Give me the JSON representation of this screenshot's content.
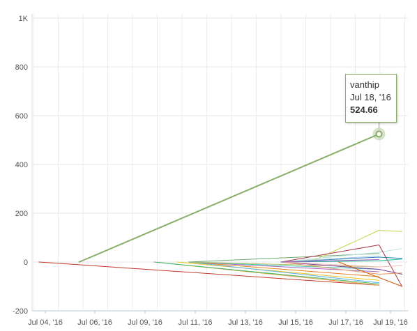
{
  "chart_data": {
    "type": "line",
    "title": "",
    "xlabel": "",
    "ylabel": "",
    "ylim": [
      -200,
      1000
    ],
    "y_ticks": [
      "-200",
      "0",
      "200",
      "400",
      "600",
      "800",
      "1K"
    ],
    "y_tick_values": [
      -200,
      0,
      200,
      400,
      600,
      800,
      1000
    ],
    "x_ticks": [
      "Jul 04, '16",
      "Jul 06, '16",
      "Jul 09, '16",
      "Jul 11, '16",
      "Jul 13, '16",
      "Jul 15, '16",
      "Jul 17, '16",
      "Jul 19, '16"
    ],
    "grid": true,
    "legend": "none",
    "highlight_color": "#8aae6a",
    "series": [
      {
        "name": "vanthip",
        "color": "#8aae6a",
        "width": 2,
        "points": [
          [
            "2016-07-05T12:00",
            0
          ],
          [
            "2016-07-18T12:00",
            524.66
          ]
        ]
      },
      {
        "color": "#c0392b",
        "width": 1,
        "points": [
          [
            "2016-07-03T18:00",
            0
          ],
          [
            "2016-07-18T12:00",
            -95
          ]
        ]
      },
      {
        "color": "#e0a030",
        "width": 1,
        "points": [
          [
            "2016-07-08T18:00",
            0
          ],
          [
            "2016-07-18T12:00",
            -95
          ]
        ]
      },
      {
        "color": "#3cb878",
        "width": 1,
        "points": [
          [
            "2016-07-08T18:00",
            0
          ],
          [
            "2016-07-18T12:00",
            -90
          ]
        ]
      },
      {
        "color": "#f0c419",
        "width": 1,
        "points": [
          [
            "2016-07-09T18:00",
            0
          ],
          [
            "2016-07-18T12:00",
            -75
          ]
        ]
      },
      {
        "color": "#e67e22",
        "width": 1,
        "points": [
          [
            "2016-07-10T06:00",
            0
          ],
          [
            "2016-07-18T12:00",
            -60
          ]
        ]
      },
      {
        "color": "#5dade2",
        "width": 1,
        "points": [
          [
            "2016-07-10T06:00",
            0
          ],
          [
            "2016-07-18T12:00",
            -85
          ]
        ]
      },
      {
        "color": "#a569bd",
        "width": 1,
        "points": [
          [
            "2016-07-10T06:00",
            0
          ],
          [
            "2016-07-18T12:00",
            -40
          ]
        ]
      },
      {
        "color": "#48c9b0",
        "width": 1,
        "points": [
          [
            "2016-07-10T06:00",
            0
          ],
          [
            "2016-07-18T12:00",
            -30
          ]
        ]
      },
      {
        "color": "#b0c060",
        "width": 1,
        "points": [
          [
            "2016-07-10T06:00",
            0
          ],
          [
            "2016-07-18T12:00",
            -20
          ]
        ]
      },
      {
        "color": "#6fa86f",
        "width": 1,
        "points": [
          [
            "2016-07-10T06:00",
            0
          ],
          [
            "2016-07-18T12:00",
            35
          ]
        ]
      },
      {
        "color": "#c2d64e",
        "width": 1,
        "points": [
          [
            "2016-07-14T06:00",
            0
          ],
          [
            "2016-07-15T18:00",
            10
          ],
          [
            "2016-07-18T12:00",
            130
          ],
          [
            "2016-07-19T12:00",
            125
          ]
        ]
      },
      {
        "color": "#bfe3e0",
        "width": 1,
        "points": [
          [
            "2016-07-14T06:00",
            0
          ],
          [
            "2016-07-18T12:00",
            40
          ],
          [
            "2016-07-19T12:00",
            55
          ]
        ]
      },
      {
        "color": "#a93246",
        "width": 1,
        "points": [
          [
            "2016-07-14T06:00",
            0
          ],
          [
            "2016-07-18T12:00",
            70
          ],
          [
            "2016-07-19T12:00",
            -100
          ]
        ]
      },
      {
        "color": "#2c7fb8",
        "width": 1,
        "points": [
          [
            "2016-07-14T06:00",
            0
          ],
          [
            "2016-07-18T12:00",
            20
          ],
          [
            "2016-07-19T12:00",
            15
          ]
        ]
      },
      {
        "color": "#1abc9c",
        "width": 1,
        "points": [
          [
            "2016-07-14T06:00",
            0
          ],
          [
            "2016-07-18T12:00",
            5
          ],
          [
            "2016-07-19T12:00",
            12
          ]
        ]
      },
      {
        "color": "#7d3c98",
        "width": 1,
        "points": [
          [
            "2016-07-14T06:00",
            0
          ],
          [
            "2016-07-18T12:00",
            -30
          ],
          [
            "2016-07-19T12:00",
            -50
          ]
        ]
      },
      {
        "color": "#e59866",
        "width": 1,
        "points": [
          [
            "2016-07-14T06:00",
            0
          ],
          [
            "2016-07-18T12:00",
            -50
          ],
          [
            "2016-07-19T12:00",
            -45
          ]
        ]
      },
      {
        "color": "#f5b7b1",
        "width": 1,
        "points": [
          [
            "2016-07-14T06:00",
            0
          ],
          [
            "2016-07-18T12:00",
            -20
          ],
          [
            "2016-07-19T12:00",
            -15
          ]
        ]
      },
      {
        "color": "#d35400",
        "width": 1,
        "points": [
          [
            "2016-07-16T18:00",
            0
          ],
          [
            "2016-07-19T12:00",
            -100
          ]
        ]
      },
      {
        "color": "#a9cce3",
        "width": 1,
        "points": [
          [
            "2016-07-14T06:00",
            0
          ],
          [
            "2016-07-18T12:00",
            25
          ]
        ]
      },
      {
        "color": "#9b59b6",
        "width": 1,
        "points": [
          [
            "2016-07-14T06:00",
            0
          ],
          [
            "2016-07-18T12:00",
            10
          ]
        ]
      }
    ],
    "tooltip": {
      "series": "vanthip",
      "date": "Jul 18, '16",
      "value": "524.66",
      "x": "2016-07-18T12:00",
      "y": 524.66
    }
  }
}
